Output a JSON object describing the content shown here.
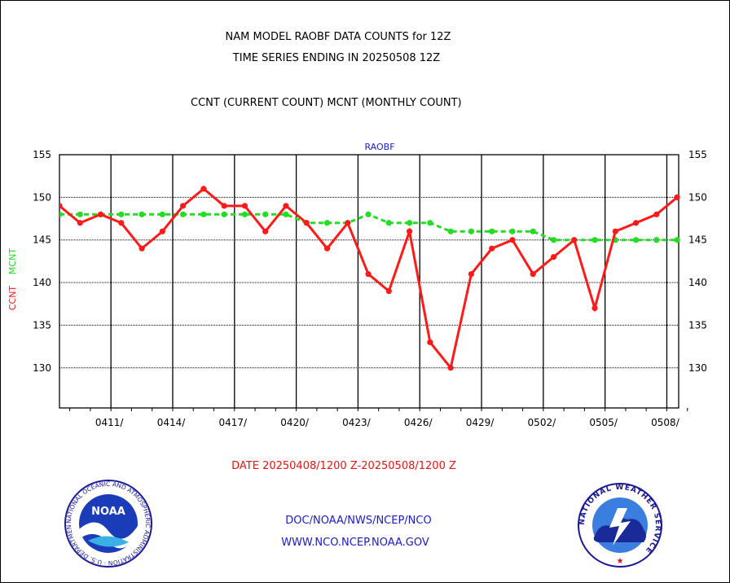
{
  "header": {
    "title_line1": "NAM MODEL RAOBF DATA COUNTS for 12Z",
    "title_line2": "TIME SERIES ENDING IN 20250508 12Z",
    "subtitle": "CCNT (CURRENT COUNT) MCNT (MONTHLY COUNT)"
  },
  "footer": {
    "date_range": "DATE 20250408/1200 Z-20250508/1200 Z",
    "org_line": "DOC/NOAA/NWS/NCEP/NCO",
    "url_line": "WWW.NCO.NCEP.NOAA.GOV"
  },
  "logos": {
    "noaa_text": "NOAA",
    "noaa_ring_text": "NATIONAL OCEANIC AND ATMOSPHERIC ADMINISTRATION · U.S. DEPARTMENT OF COMMERCE",
    "nws_ring_text": "NATIONAL WEATHER SERVICE"
  },
  "colors": {
    "ccnt": "#ff1a1a",
    "mcnt": "#22dd22",
    "text_blue": "#1a1acc",
    "date_red": "#ee1111"
  },
  "chart_data": {
    "type": "line",
    "title": "RAOBF",
    "ylabel_left_ccnt": "CCNT",
    "ylabel_left_mcnt": "MCNT",
    "ylim": [
      125.5,
      155
    ],
    "yticks": [
      155,
      150,
      145,
      140,
      135,
      130
    ],
    "xlim": [
      0,
      30.1
    ],
    "x_tick_labels": [
      "0411/",
      "0414/",
      "0417/",
      "0420/",
      "0423/",
      "0426/",
      "0429/",
      "0502/",
      "0505/",
      "0508/"
    ],
    "x_tick_positions": [
      2.5,
      5.5,
      8.5,
      11.5,
      14.5,
      17.5,
      20.5,
      23.5,
      26.5,
      29.5
    ],
    "grid": true,
    "series": [
      {
        "name": "CCNT",
        "x": [
          0,
          1,
          2,
          3,
          4,
          5,
          6,
          7,
          8,
          9,
          10,
          11,
          12,
          13,
          14,
          15,
          16,
          17,
          18,
          19,
          20,
          21,
          22,
          23,
          24,
          25,
          26,
          27,
          28,
          29,
          30
        ],
        "values": [
          149,
          147,
          148,
          147,
          144,
          146,
          149,
          151,
          149,
          149,
          146,
          149,
          147,
          144,
          147,
          141,
          139,
          146,
          133,
          130,
          141,
          144,
          145,
          141,
          143,
          145,
          137,
          146,
          147,
          148,
          150
        ]
      },
      {
        "name": "MCNT",
        "x": [
          0,
          1,
          2,
          3,
          4,
          5,
          6,
          7,
          8,
          9,
          10,
          11,
          12,
          13,
          14,
          15,
          16,
          17,
          18,
          19,
          20,
          21,
          22,
          23,
          24,
          25,
          26,
          27,
          28,
          29,
          30
        ],
        "values": [
          148,
          148,
          148,
          148,
          148,
          148,
          148,
          148,
          148,
          148,
          148,
          148,
          147,
          147,
          147,
          148,
          147,
          147,
          147,
          146,
          146,
          146,
          146,
          146,
          145,
          145,
          145,
          145,
          145,
          145,
          145
        ]
      }
    ]
  }
}
